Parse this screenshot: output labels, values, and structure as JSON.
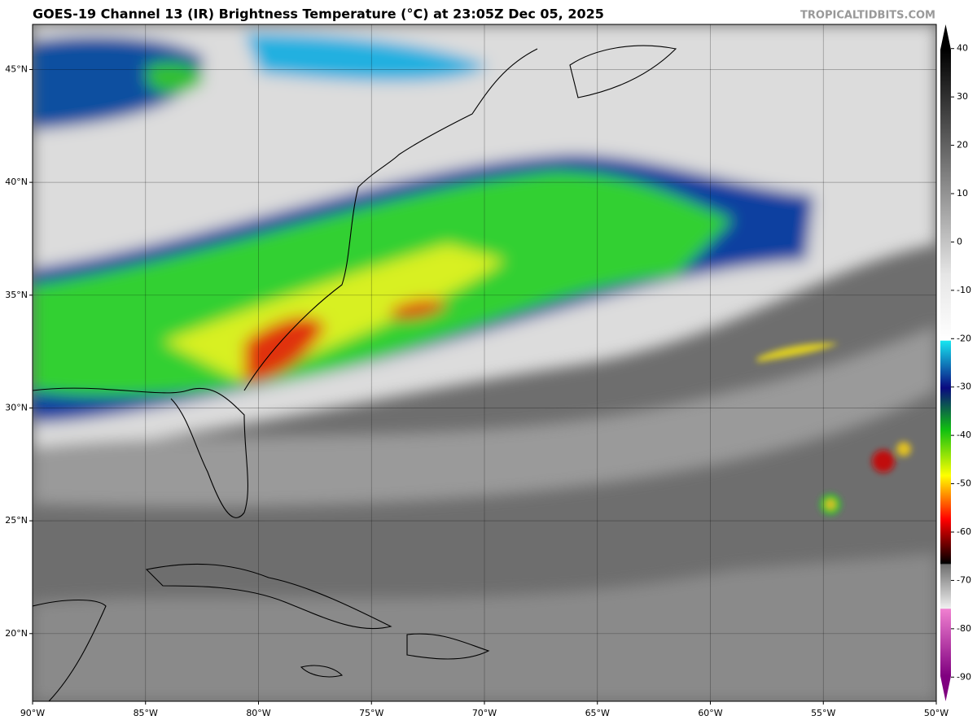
{
  "header": {
    "title": "GOES-19 Channel 13 (IR) Brightness Temperature (°C) at 23:05Z Dec 05, 2025",
    "site": "TROPICALTIDBITS.COM"
  },
  "map": {
    "lonlim": [
      -90,
      -50
    ],
    "latlim": [
      17,
      47
    ],
    "lon_ticks": [
      {
        "value": -90,
        "label": "90°W"
      },
      {
        "value": -85,
        "label": "85°W"
      },
      {
        "value": -80,
        "label": "80°W"
      },
      {
        "value": -75,
        "label": "75°W"
      },
      {
        "value": -70,
        "label": "70°W"
      },
      {
        "value": -65,
        "label": "65°W"
      },
      {
        "value": -60,
        "label": "60°W"
      },
      {
        "value": -55,
        "label": "55°W"
      },
      {
        "value": -50,
        "label": "50°W"
      }
    ],
    "lat_ticks": [
      {
        "value": 20,
        "label": "20°N"
      },
      {
        "value": 25,
        "label": "25°N"
      },
      {
        "value": 30,
        "label": "30°N"
      },
      {
        "value": 35,
        "label": "35°N"
      },
      {
        "value": 40,
        "label": "40°N"
      },
      {
        "value": 45,
        "label": "45°N"
      }
    ],
    "grid": true
  },
  "colorbar": {
    "lim": [
      -95,
      45
    ],
    "ticks": [
      40,
      30,
      20,
      10,
      0,
      -10,
      -20,
      -30,
      -40,
      -50,
      -60,
      -70,
      -80,
      -90
    ]
  }
}
